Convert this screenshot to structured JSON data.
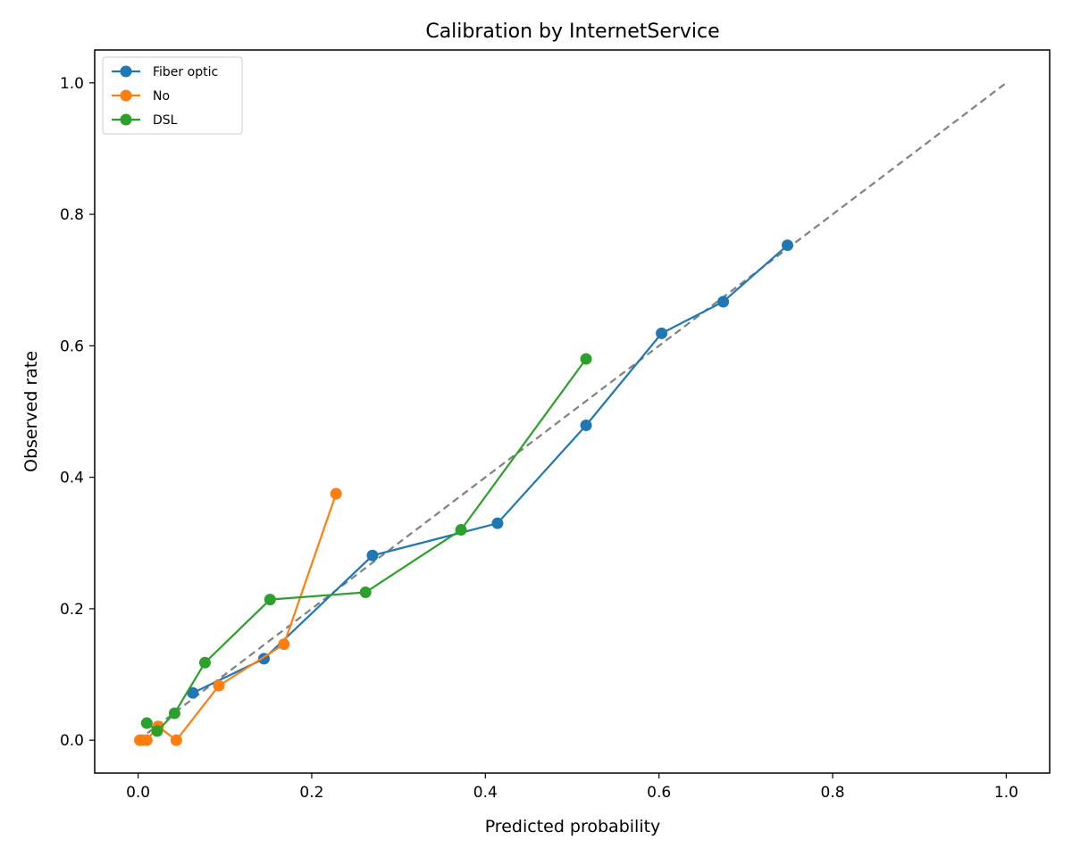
{
  "chart_data": {
    "type": "line",
    "title": "Calibration by InternetService",
    "xlabel": "Predicted probability",
    "ylabel": "Observed rate",
    "xlim": [
      -0.05,
      1.05
    ],
    "ylim": [
      -0.05,
      1.05
    ],
    "xticks": [
      0.0,
      0.2,
      0.4,
      0.6,
      0.8,
      1.0
    ],
    "xtick_labels": [
      "0.0",
      "0.2",
      "0.4",
      "0.6",
      "0.8",
      "1.0"
    ],
    "yticks": [
      0.0,
      0.2,
      0.4,
      0.6,
      0.8,
      1.0
    ],
    "ytick_labels": [
      "0.0",
      "0.2",
      "0.4",
      "0.6",
      "0.8",
      "1.0"
    ],
    "grid": false,
    "legend_position": "top-left",
    "reference_line": {
      "x": [
        0,
        1
      ],
      "y": [
        0,
        1
      ],
      "style": "dashed",
      "color": "#808080"
    },
    "series": [
      {
        "name": "Fiber optic",
        "color": "#1f77b4",
        "x": [
          0.063,
          0.145,
          0.27,
          0.414,
          0.516,
          0.603,
          0.674,
          0.748
        ],
        "y": [
          0.072,
          0.124,
          0.281,
          0.33,
          0.479,
          0.619,
          0.667,
          0.753
        ]
      },
      {
        "name": "No",
        "color": "#ff7f0e",
        "x": [
          0.002,
          0.005,
          0.01,
          0.023,
          0.044,
          0.093,
          0.168,
          0.228
        ],
        "y": [
          0.0,
          0.0,
          0.0,
          0.021,
          0.0,
          0.083,
          0.146,
          0.375
        ]
      },
      {
        "name": "DSL",
        "color": "#2ca02c",
        "x": [
          0.01,
          0.022,
          0.042,
          0.077,
          0.152,
          0.262,
          0.372,
          0.516
        ],
        "y": [
          0.026,
          0.014,
          0.041,
          0.118,
          0.214,
          0.225,
          0.32,
          0.58
        ]
      }
    ]
  }
}
